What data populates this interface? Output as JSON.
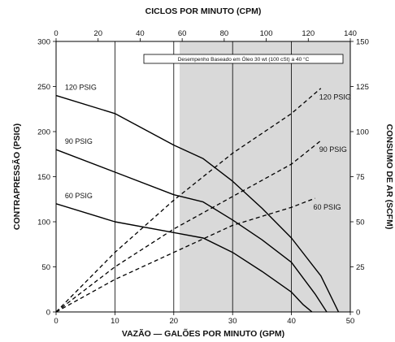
{
  "chart_data": {
    "type": "line",
    "title": "CICLOS POR MINUTO (CPM)",
    "note": "Desempenho Baseado em Óleo 30 wt (100 cSt) a 40 °C",
    "xlabel": "VAZÃO — GALÕES POR MINUTO (GPM)",
    "ylabel_left": "CONTRAPRESSÃO (PSIG)",
    "ylabel_right": "CONSUMO DE AR (SCFM)",
    "xlim": [
      0,
      50
    ],
    "ylim_left": [
      0,
      300
    ],
    "ylim_right": [
      0,
      150
    ],
    "top_xlim": [
      0,
      140
    ],
    "x_ticks": [
      "0",
      "10",
      "20",
      "30",
      "40",
      "50"
    ],
    "y_left_ticks": [
      "0",
      "50",
      "100",
      "150",
      "200",
      "250",
      "300"
    ],
    "y_right_ticks": [
      "0",
      "25",
      "50",
      "75",
      "100",
      "125",
      "150"
    ],
    "top_ticks": [
      "0",
      "20",
      "40",
      "60",
      "80",
      "100",
      "120",
      "140"
    ],
    "shaded_region": {
      "x_from": 21,
      "x_to": 50
    },
    "grid": true,
    "backpressure_series": [
      {
        "name": "120 PSIG",
        "x": [
          0,
          10,
          20,
          25,
          30,
          35,
          40,
          45,
          48
        ],
        "y": [
          240,
          220,
          185,
          170,
          145,
          115,
          82,
          40,
          0
        ]
      },
      {
        "name": "90 PSIG",
        "x": [
          0,
          10,
          20,
          25,
          30,
          35,
          40,
          44,
          46
        ],
        "y": [
          180,
          155,
          130,
          122,
          102,
          80,
          55,
          20,
          0
        ]
      },
      {
        "name": "60 PSIG",
        "x": [
          0,
          10,
          20,
          25,
          30,
          35,
          40,
          42,
          43.5
        ],
        "y": [
          120,
          100,
          88,
          82,
          66,
          45,
          22,
          8,
          0
        ]
      }
    ],
    "air_consumption_series": [
      {
        "name": "120 PSIG",
        "x": [
          0,
          10,
          20,
          30,
          40,
          45
        ],
        "y": [
          0,
          33,
          62,
          88,
          110,
          124
        ]
      },
      {
        "name": "90 PSIG",
        "x": [
          0,
          10,
          20,
          30,
          40,
          45
        ],
        "y": [
          0,
          25,
          46,
          64,
          82,
          95
        ]
      },
      {
        "name": "60 PSIG",
        "x": [
          0,
          10,
          20,
          30,
          40,
          44
        ],
        "y": [
          0,
          18,
          33,
          48,
          58,
          63
        ]
      }
    ]
  }
}
